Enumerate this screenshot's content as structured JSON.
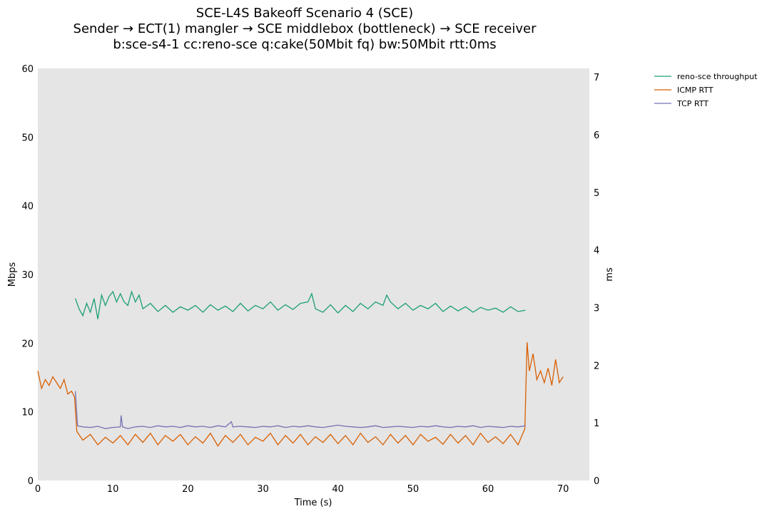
{
  "chart_data": {
    "type": "line",
    "title": [
      "SCE-L4S Bakeoff Scenario 4 (SCE)",
      "Sender → ECT(1) mangler → SCE middlebox (bottleneck) → SCE receiver",
      "b:sce-s4-1 cc:reno-sce q:cake(50Mbit fq) bw:50Mbit rtt:0ms"
    ],
    "xlabel": "Time (s)",
    "ylabel_left": "Mbps",
    "ylabel_right": "ms",
    "xlim": [
      0,
      73.5
    ],
    "ylim_left": [
      0,
      60
    ],
    "ylim_right": [
      0,
      7.15
    ],
    "xticks": [
      0,
      10,
      20,
      30,
      40,
      50,
      60,
      70
    ],
    "yticks_left": [
      0,
      10,
      20,
      30,
      40,
      50,
      60
    ],
    "yticks_right": [
      0,
      1,
      2,
      3,
      4,
      5,
      6,
      7
    ],
    "grid": false,
    "background": "#e5e5e5",
    "legend_position": "outside top-right",
    "series": [
      {
        "name": "reno-sce throughput",
        "axis": "left",
        "color": "#1b9e77",
        "x": [
          5,
          5.5,
          6,
          6.5,
          7,
          7.5,
          8,
          8.5,
          9,
          9.5,
          10,
          10.5,
          11,
          11.5,
          12,
          12.5,
          13,
          13.5,
          14,
          15,
          16,
          17,
          18,
          19,
          20,
          21,
          22,
          23,
          24,
          25,
          26,
          27,
          28,
          29,
          30,
          31,
          32,
          33,
          34,
          35,
          36,
          36.5,
          37,
          38,
          39,
          40,
          41,
          42,
          43,
          44,
          45,
          46,
          46.5,
          47,
          48,
          49,
          50,
          51,
          52,
          53,
          54,
          55,
          56,
          57,
          58,
          59,
          60,
          61,
          62,
          63,
          64,
          65
        ],
        "y": [
          26.5,
          25.0,
          24.0,
          25.8,
          24.5,
          26.5,
          23.5,
          27.0,
          25.5,
          26.8,
          27.5,
          26.0,
          27.2,
          26.0,
          25.5,
          27.5,
          26.0,
          27.0,
          25.0,
          25.8,
          24.6,
          25.5,
          24.5,
          25.3,
          24.8,
          25.5,
          24.5,
          25.6,
          24.8,
          25.4,
          24.6,
          25.8,
          24.7,
          25.5,
          25.0,
          26.0,
          24.8,
          25.6,
          24.9,
          25.8,
          26.0,
          27.2,
          25.0,
          24.5,
          25.6,
          24.4,
          25.5,
          24.6,
          25.8,
          25.0,
          26.0,
          25.5,
          27.0,
          26.0,
          25.0,
          25.8,
          24.8,
          25.5,
          25.0,
          25.8,
          24.6,
          25.4,
          24.7,
          25.3,
          24.5,
          25.2,
          24.8,
          25.1,
          24.5,
          25.3,
          24.6,
          24.8
        ]
      },
      {
        "name": "ICMP RTT",
        "axis": "right",
        "color": "#d95f02",
        "x": [
          0,
          0.5,
          1,
          1.5,
          2,
          2.5,
          3,
          3.5,
          4,
          4.5,
          4.9,
          5.2,
          6,
          7,
          8,
          9,
          10,
          11,
          12,
          13,
          14,
          15,
          16,
          17,
          18,
          19,
          20,
          21,
          22,
          23,
          24,
          25,
          26,
          27,
          28,
          29,
          30,
          31,
          32,
          33,
          34,
          35,
          36,
          37,
          38,
          39,
          40,
          41,
          42,
          43,
          44,
          45,
          46,
          47,
          48,
          49,
          50,
          51,
          52,
          53,
          54,
          55,
          56,
          57,
          58,
          59,
          60,
          61,
          62,
          63,
          64,
          64.9,
          65.2,
          65.5,
          66,
          66.5,
          67,
          67.5,
          68,
          68.5,
          69,
          69.5,
          70
        ],
        "y": [
          1.9,
          1.6,
          1.75,
          1.65,
          1.8,
          1.7,
          1.6,
          1.75,
          1.5,
          1.55,
          1.45,
          0.85,
          0.7,
          0.8,
          0.62,
          0.75,
          0.65,
          0.78,
          0.62,
          0.8,
          0.66,
          0.82,
          0.62,
          0.78,
          0.68,
          0.8,
          0.62,
          0.76,
          0.65,
          0.82,
          0.6,
          0.78,
          0.66,
          0.8,
          0.62,
          0.75,
          0.68,
          0.82,
          0.62,
          0.78,
          0.65,
          0.8,
          0.62,
          0.76,
          0.66,
          0.8,
          0.64,
          0.78,
          0.62,
          0.82,
          0.66,
          0.76,
          0.62,
          0.8,
          0.65,
          0.78,
          0.62,
          0.8,
          0.68,
          0.75,
          0.63,
          0.8,
          0.65,
          0.78,
          0.62,
          0.82,
          0.66,
          0.76,
          0.64,
          0.8,
          0.62,
          0.9,
          2.4,
          1.9,
          2.2,
          1.75,
          1.9,
          1.7,
          1.95,
          1.65,
          2.1,
          1.7,
          1.8
        ]
      },
      {
        "name": "TCP RTT",
        "axis": "right",
        "color": "#7570b3",
        "x": [
          5,
          5.3,
          6,
          7,
          8,
          9,
          10,
          11,
          11.1,
          11.3,
          12,
          13,
          14,
          15,
          16,
          17,
          18,
          19,
          20,
          21,
          22,
          23,
          24,
          25,
          25.8,
          26,
          27,
          28,
          29,
          30,
          31,
          32,
          33,
          34,
          35,
          36,
          37,
          38,
          39,
          40,
          41,
          42,
          43,
          44,
          45,
          46,
          47,
          48,
          49,
          50,
          51,
          52,
          53,
          54,
          55,
          56,
          57,
          58,
          59,
          60,
          61,
          62,
          63,
          64,
          65
        ],
        "y": [
          1.55,
          0.95,
          0.93,
          0.92,
          0.94,
          0.9,
          0.92,
          0.93,
          1.13,
          0.93,
          0.9,
          0.93,
          0.94,
          0.92,
          0.95,
          0.93,
          0.94,
          0.92,
          0.95,
          0.93,
          0.94,
          0.92,
          0.95,
          0.93,
          1.02,
          0.93,
          0.94,
          0.93,
          0.92,
          0.94,
          0.93,
          0.95,
          0.92,
          0.94,
          0.93,
          0.95,
          0.93,
          0.92,
          0.94,
          0.96,
          0.94,
          0.93,
          0.92,
          0.93,
          0.95,
          0.92,
          0.93,
          0.94,
          0.93,
          0.92,
          0.94,
          0.93,
          0.95,
          0.93,
          0.92,
          0.94,
          0.93,
          0.95,
          0.92,
          0.94,
          0.93,
          0.92,
          0.94,
          0.93,
          0.95
        ]
      }
    ]
  }
}
